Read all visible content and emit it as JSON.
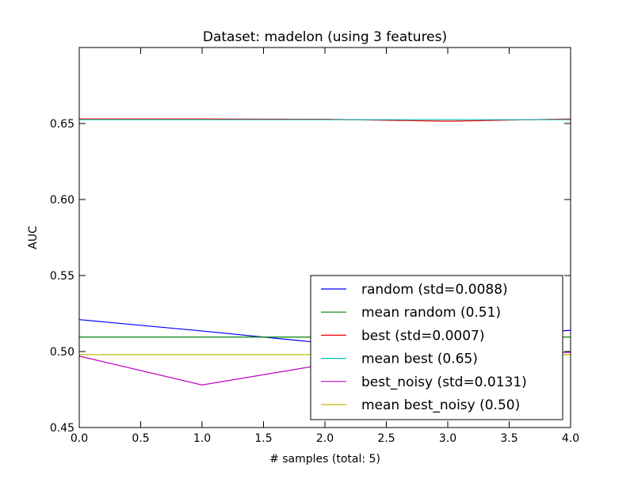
{
  "chart_data": {
    "type": "line",
    "title": "Dataset: madelon (using 3 features)",
    "xlabel": "# samples (total: 5)",
    "ylabel": "AUC",
    "xlim": [
      0.0,
      4.0
    ],
    "ylim": [
      0.45,
      0.7
    ],
    "x_ticks": [
      0.0,
      0.5,
      1.0,
      1.5,
      2.0,
      2.5,
      3.0,
      3.5,
      4.0
    ],
    "x_tick_labels": [
      "0.0",
      "0.5",
      "1.0",
      "1.5",
      "2.0",
      "2.5",
      "3.0",
      "3.5",
      "4.0"
    ],
    "y_ticks": [
      0.45,
      0.5,
      0.55,
      0.6,
      0.65
    ],
    "y_tick_labels": [
      "0.45",
      "0.50",
      "0.55",
      "0.60",
      "0.65"
    ],
    "grid": false,
    "legend_position": "lower-right",
    "x": [
      0,
      1,
      2,
      3,
      4
    ],
    "series": [
      {
        "name": "random (std=0.0088)",
        "color": "#0000ff",
        "values": [
          0.521,
          0.5135,
          0.5055,
          0.508,
          0.514
        ]
      },
      {
        "name": "mean random (0.51)",
        "color": "#008000",
        "values": [
          0.5095,
          0.5095,
          0.5095,
          0.5095,
          0.5095
        ]
      },
      {
        "name": "best (std=0.0007)",
        "color": "#ff0000",
        "values": [
          0.653,
          0.653,
          0.6528,
          0.6515,
          0.653
        ]
      },
      {
        "name": "mean best (0.65)",
        "color": "#00bfbf",
        "values": [
          0.6525,
          0.6525,
          0.6525,
          0.6525,
          0.6525
        ]
      },
      {
        "name": "best_noisy (std=0.0131)",
        "color": "#bf00bf",
        "values": [
          0.497,
          0.478,
          0.4915,
          0.498,
          0.4995
        ]
      },
      {
        "name": "mean best_noisy (0.50)",
        "color": "#bfbf00",
        "values": [
          0.498,
          0.498,
          0.498,
          0.498,
          0.498
        ]
      }
    ]
  }
}
